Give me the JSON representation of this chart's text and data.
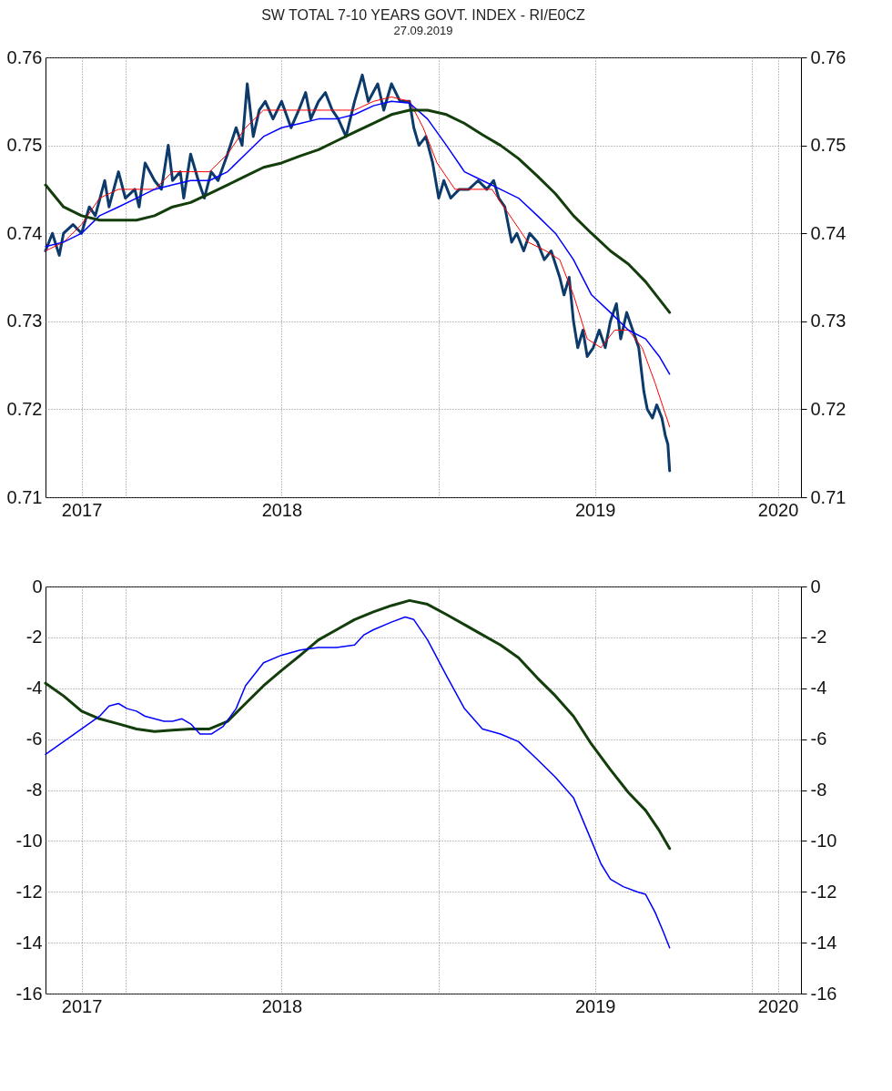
{
  "chart_data": [
    {
      "type": "line",
      "title": "SW TOTAL 7-10 YEARS GOVT. INDEX - RI/E0CZ",
      "subtitle": "27.09.2019",
      "x": [
        "2017-09-30",
        "2017-10-21",
        "2017-11-11",
        "2017-12-02",
        "2017-12-24",
        "2018-01-14",
        "2018-02-04",
        "2018-02-25",
        "2018-03-18",
        "2018-04-09",
        "2018-04-30",
        "2018-05-21",
        "2018-06-11",
        "2018-07-02",
        "2018-07-24",
        "2018-08-14",
        "2018-09-04",
        "2018-09-25",
        "2018-10-17",
        "2018-11-07",
        "2018-11-28",
        "2018-12-19",
        "2019-01-10",
        "2019-01-31",
        "2019-02-21",
        "2019-03-14",
        "2019-04-04",
        "2019-04-26",
        "2019-05-17",
        "2019-06-07",
        "2019-06-28",
        "2019-07-20",
        "2019-08-10",
        "2019-08-30",
        "2019-09-15",
        "2019-09-27"
      ],
      "series": [
        {
          "color": "#0b3a6b",
          "x": [
            "2017-09-30",
            "2017-10-08",
            "2017-10-16",
            "2017-10-21",
            "2017-11-01",
            "2017-11-11",
            "2017-11-20",
            "2017-11-27",
            "2017-12-08",
            "2017-12-13",
            "2017-12-24",
            "2018-01-01",
            "2018-01-12",
            "2018-01-17",
            "2018-01-24",
            "2018-02-04",
            "2018-02-12",
            "2018-02-20",
            "2018-02-25",
            "2018-03-06",
            "2018-03-10",
            "2018-03-18",
            "2018-03-27",
            "2018-04-03",
            "2018-04-11",
            "2018-04-19",
            "2018-04-30",
            "2018-05-10",
            "2018-05-17",
            "2018-05-23",
            "2018-05-30",
            "2018-06-06",
            "2018-06-13",
            "2018-06-22",
            "2018-07-02",
            "2018-07-13",
            "2018-07-22",
            "2018-07-30",
            "2018-08-05",
            "2018-08-14",
            "2018-08-22",
            "2018-08-30",
            "2018-09-06",
            "2018-09-15",
            "2018-09-25",
            "2018-10-04",
            "2018-10-11",
            "2018-10-22",
            "2018-10-29",
            "2018-11-07",
            "2018-11-17",
            "2018-11-28",
            "2018-12-03",
            "2018-12-09",
            "2018-12-17",
            "2018-12-25",
            "2019-01-01",
            "2019-01-07",
            "2019-01-15",
            "2019-01-25",
            "2019-02-05",
            "2019-02-16",
            "2019-02-26",
            "2019-03-06",
            "2019-03-12",
            "2019-03-19",
            "2019-03-27",
            "2019-04-02",
            "2019-04-10",
            "2019-04-17",
            "2019-04-26",
            "2019-05-04",
            "2019-05-12",
            "2019-05-22",
            "2019-05-27",
            "2019-06-02",
            "2019-06-07",
            "2019-06-12",
            "2019-06-18",
            "2019-06-23",
            "2019-06-30",
            "2019-07-07",
            "2019-07-14",
            "2019-07-20",
            "2019-07-27",
            "2019-08-01",
            "2019-08-08",
            "2019-08-15",
            "2019-08-22",
            "2019-08-28",
            "2019-09-01",
            "2019-09-07",
            "2019-09-12",
            "2019-09-18",
            "2019-09-22",
            "2019-09-25",
            "2019-09-27"
          ],
          "values": [
            0.738,
            0.74,
            0.7375,
            0.74,
            0.741,
            0.74,
            0.743,
            0.742,
            0.746,
            0.743,
            0.747,
            0.744,
            0.745,
            0.743,
            0.748,
            0.746,
            0.745,
            0.75,
            0.746,
            0.747,
            0.744,
            0.749,
            0.746,
            0.744,
            0.747,
            0.746,
            0.749,
            0.752,
            0.75,
            0.757,
            0.751,
            0.754,
            0.755,
            0.753,
            0.755,
            0.752,
            0.754,
            0.756,
            0.753,
            0.755,
            0.756,
            0.754,
            0.753,
            0.751,
            0.755,
            0.758,
            0.755,
            0.757,
            0.754,
            0.757,
            0.755,
            0.755,
            0.752,
            0.75,
            0.751,
            0.748,
            0.744,
            0.746,
            0.744,
            0.745,
            0.745,
            0.746,
            0.745,
            0.746,
            0.744,
            0.743,
            0.739,
            0.74,
            0.738,
            0.74,
            0.739,
            0.737,
            0.738,
            0.735,
            0.733,
            0.735,
            0.73,
            0.727,
            0.729,
            0.726,
            0.727,
            0.729,
            0.727,
            0.73,
            0.732,
            0.728,
            0.731,
            0.729,
            0.727,
            0.722,
            0.72,
            0.719,
            0.7205,
            0.719,
            0.717,
            0.716,
            0.713
          ]
        },
        {
          "color": "#ff0000",
          "x": [
            "2017-09-30",
            "2017-10-21",
            "2017-11-11",
            "2017-12-02",
            "2017-12-24",
            "2018-01-14",
            "2018-02-04",
            "2018-02-25",
            "2018-03-18",
            "2018-04-09",
            "2018-04-30",
            "2018-05-21",
            "2018-06-11",
            "2018-07-02",
            "2018-07-24",
            "2018-08-14",
            "2018-09-04",
            "2018-09-25",
            "2018-10-17",
            "2018-11-07",
            "2018-11-28",
            "2018-12-14",
            "2018-12-30",
            "2019-01-20",
            "2019-02-10",
            "2019-03-04",
            "2019-03-25",
            "2019-04-15",
            "2019-05-06",
            "2019-05-22",
            "2019-06-07",
            "2019-06-23",
            "2019-07-09",
            "2019-07-25",
            "2019-08-10",
            "2019-08-26",
            "2019-09-10",
            "2019-09-27"
          ],
          "values": [
            0.738,
            0.739,
            0.741,
            0.744,
            0.745,
            0.745,
            0.745,
            0.747,
            0.747,
            0.747,
            0.749,
            0.752,
            0.754,
            0.754,
            0.754,
            0.754,
            0.754,
            0.754,
            0.755,
            0.7555,
            0.755,
            0.752,
            0.748,
            0.745,
            0.745,
            0.745,
            0.742,
            0.739,
            0.738,
            0.737,
            0.733,
            0.728,
            0.727,
            0.729,
            0.729,
            0.727,
            0.723,
            0.718
          ]
        },
        {
          "color": "#0000ff",
          "values": [
            0.7385,
            0.739,
            0.74,
            0.742,
            0.743,
            0.744,
            0.745,
            0.7455,
            0.746,
            0.746,
            0.747,
            0.749,
            0.751,
            0.752,
            0.7525,
            0.753,
            0.753,
            0.7535,
            0.7545,
            0.755,
            0.7548,
            0.753,
            0.75,
            0.747,
            0.746,
            0.745,
            0.744,
            0.742,
            0.74,
            0.737,
            0.733,
            0.731,
            0.729,
            0.728,
            0.726,
            0.724
          ]
        },
        {
          "color": "#133d0b",
          "values": [
            0.7455,
            0.743,
            0.742,
            0.7415,
            0.7415,
            0.7415,
            0.742,
            0.743,
            0.7435,
            0.7445,
            0.7455,
            0.7465,
            0.7475,
            0.748,
            0.7488,
            0.7495,
            0.7505,
            0.7515,
            0.7525,
            0.7535,
            0.754,
            0.754,
            0.7535,
            0.7525,
            0.7512,
            0.75,
            0.7485,
            0.7465,
            0.7445,
            0.742,
            0.74,
            0.738,
            0.7365,
            0.7345,
            0.7325,
            0.731
          ]
        }
      ],
      "xlim": [
        "2017-09-30",
        "2020-02-27"
      ],
      "xticks": [
        {
          "value": "2017-11-11",
          "label": "2017"
        },
        {
          "value": "2018-01-01",
          "label": null
        },
        {
          "value": "2018-07-02",
          "label": "2018"
        },
        {
          "value": "2019-01-01",
          "label": null
        },
        {
          "value": "2019-07-02",
          "label": "2019"
        },
        {
          "value": "2020-01-01",
          "label": null
        },
        {
          "value": "2020-01-31",
          "label": "2020"
        }
      ],
      "ylim": [
        0.71,
        0.76
      ],
      "yticks": [
        0.71,
        0.72,
        0.73,
        0.74,
        0.75,
        0.76
      ],
      "y2lim": [
        0.71,
        0.76
      ],
      "y2ticks": [
        0.71,
        0.72,
        0.73,
        0.74,
        0.75,
        0.76
      ],
      "grid": true,
      "legend": false,
      "marker": "none",
      "line_style": "solid"
    },
    {
      "type": "line",
      "x": [
        "2017-09-30",
        "2017-10-21",
        "2017-11-11",
        "2017-12-02",
        "2017-12-24",
        "2018-01-14",
        "2018-02-04",
        "2018-02-25",
        "2018-03-18",
        "2018-04-09",
        "2018-04-30",
        "2018-05-21",
        "2018-06-11",
        "2018-07-02",
        "2018-07-24",
        "2018-08-14",
        "2018-09-04",
        "2018-09-25",
        "2018-10-17",
        "2018-11-07",
        "2018-11-28",
        "2018-12-19",
        "2019-01-10",
        "2019-01-31",
        "2019-02-21",
        "2019-03-14",
        "2019-04-04",
        "2019-04-26",
        "2019-05-17",
        "2019-06-07",
        "2019-06-28",
        "2019-07-20",
        "2019-08-10",
        "2019-08-30",
        "2019-09-15",
        "2019-09-27"
      ],
      "series": [
        {
          "color": "#133d0b",
          "values": [
            -3.8,
            -4.3,
            -4.9,
            -5.2,
            -5.4,
            -5.6,
            -5.7,
            -5.65,
            -5.6,
            -5.6,
            -5.3,
            -4.6,
            -3.9,
            -3.3,
            -2.7,
            -2.1,
            -1.7,
            -1.3,
            -1.0,
            -0.75,
            -0.55,
            -0.7,
            -1.1,
            -1.5,
            -1.9,
            -2.3,
            -2.8,
            -3.6,
            -4.3,
            -5.1,
            -6.2,
            -7.2,
            -8.1,
            -8.8,
            -9.6,
            -10.3
          ]
        },
        {
          "color": "#0000ff",
          "x": [
            "2017-09-30",
            "2017-10-21",
            "2017-11-11",
            "2017-12-02",
            "2017-12-13",
            "2017-12-24",
            "2018-01-03",
            "2018-01-14",
            "2018-01-24",
            "2018-02-04",
            "2018-02-15",
            "2018-02-25",
            "2018-03-08",
            "2018-03-18",
            "2018-03-29",
            "2018-04-11",
            "2018-04-25",
            "2018-05-10",
            "2018-05-21",
            "2018-06-11",
            "2018-07-02",
            "2018-07-24",
            "2018-08-14",
            "2018-09-04",
            "2018-09-25",
            "2018-10-06",
            "2018-10-17",
            "2018-11-07",
            "2018-11-23",
            "2018-12-03",
            "2018-12-19",
            "2019-01-10",
            "2019-01-31",
            "2019-02-21",
            "2019-03-14",
            "2019-04-04",
            "2019-04-26",
            "2019-05-17",
            "2019-06-07",
            "2019-06-28",
            "2019-07-09",
            "2019-07-20",
            "2019-08-04",
            "2019-08-20",
            "2019-08-30",
            "2019-09-10",
            "2019-09-20",
            "2019-09-27"
          ],
          "values": [
            -6.6,
            -6.1,
            -5.6,
            -5.1,
            -4.7,
            -4.6,
            -4.8,
            -4.9,
            -5.1,
            -5.2,
            -5.3,
            -5.3,
            -5.2,
            -5.4,
            -5.8,
            -5.8,
            -5.5,
            -4.8,
            -3.9,
            -3.0,
            -2.7,
            -2.5,
            -2.4,
            -2.4,
            -2.3,
            -1.9,
            -1.7,
            -1.4,
            -1.2,
            -1.3,
            -2.1,
            -3.5,
            -4.8,
            -5.6,
            -5.8,
            -6.1,
            -6.8,
            -7.5,
            -8.3,
            -10.0,
            -10.9,
            -11.5,
            -11.8,
            -12.0,
            -12.1,
            -12.8,
            -13.6,
            -14.2
          ]
        }
      ],
      "xlim": [
        "2017-09-30",
        "2020-02-27"
      ],
      "xticks": [
        {
          "value": "2017-11-11",
          "label": "2017"
        },
        {
          "value": "2018-01-01",
          "label": null
        },
        {
          "value": "2018-07-02",
          "label": "2018"
        },
        {
          "value": "2019-01-01",
          "label": null
        },
        {
          "value": "2019-07-02",
          "label": "2019"
        },
        {
          "value": "2020-01-01",
          "label": null
        },
        {
          "value": "2020-01-31",
          "label": "2020"
        }
      ],
      "ylim": [
        -16,
        0
      ],
      "yticks": [
        -16,
        -14,
        -12,
        -10,
        -8,
        -6,
        -4,
        -2,
        0
      ],
      "y2lim": [
        -16,
        0
      ],
      "y2ticks": [
        -16,
        -14,
        -12,
        -10,
        -8,
        -6,
        -4,
        -2,
        0
      ],
      "grid": true,
      "legend": false,
      "marker": "none",
      "line_style": "solid"
    }
  ]
}
